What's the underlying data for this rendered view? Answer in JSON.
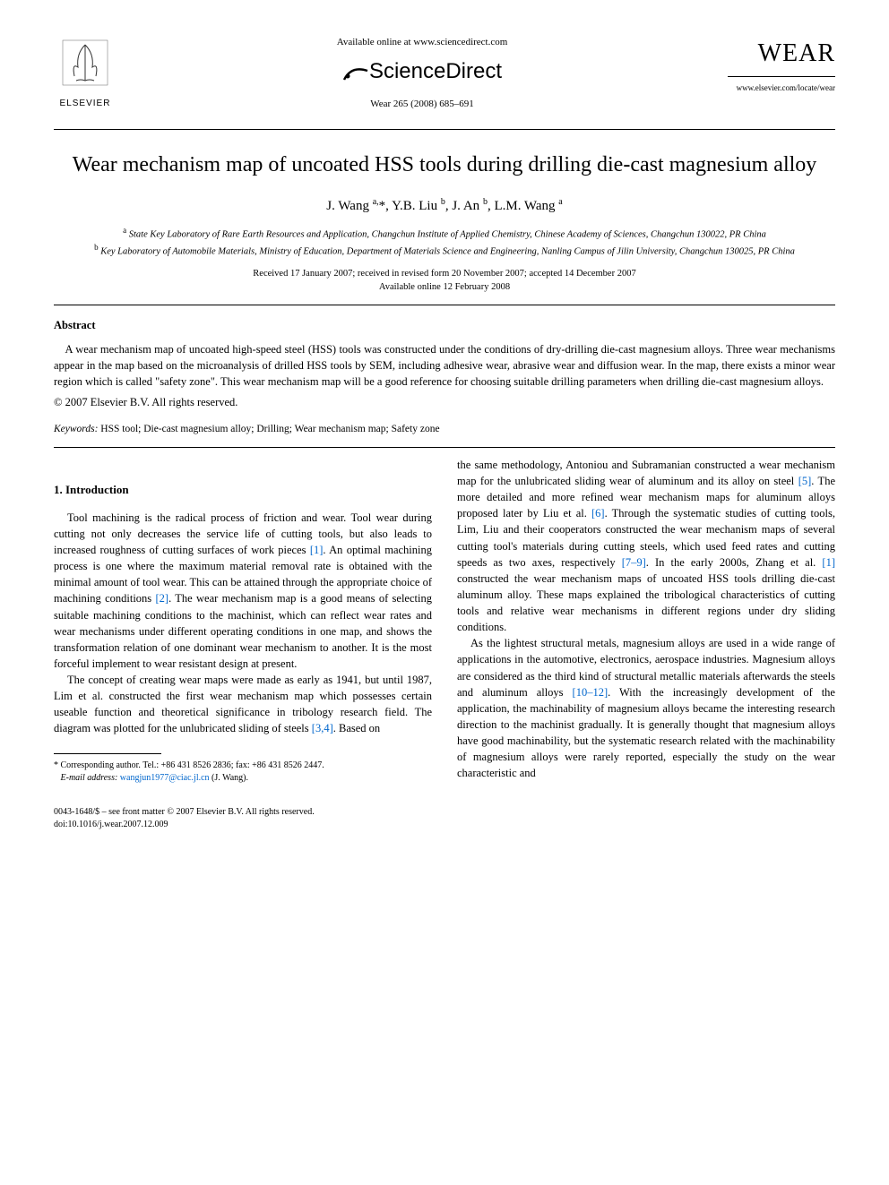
{
  "header": {
    "publisher_name": "ELSEVIER",
    "available_online": "Available online at www.sciencedirect.com",
    "sciencedirect": "ScienceDirect",
    "journal_ref": "Wear 265 (2008) 685–691",
    "journal_logo": "WEAR",
    "journal_url": "www.elsevier.com/locate/wear"
  },
  "title": "Wear mechanism map of uncoated HSS tools during drilling die-cast magnesium alloy",
  "authors_html": "J. Wang <sup>a,</sup>*, Y.B. Liu <sup>b</sup>, J. An <sup>b</sup>, L.M. Wang <sup>a</sup>",
  "affiliations": {
    "a": "State Key Laboratory of Rare Earth Resources and Application, Changchun Institute of Applied Chemistry, Chinese Academy of Sciences, Changchun 130022, PR China",
    "b": "Key Laboratory of Automobile Materials, Ministry of Education, Department of Materials Science and Engineering, Nanling Campus of Jilin University, Changchun 130025, PR China"
  },
  "dates": {
    "line1": "Received 17 January 2007; received in revised form 20 November 2007; accepted 14 December 2007",
    "line2": "Available online 12 February 2008"
  },
  "abstract": {
    "heading": "Abstract",
    "text": "A wear mechanism map of uncoated high-speed steel (HSS) tools was constructed under the conditions of dry-drilling die-cast magnesium alloys. Three wear mechanisms appear in the map based on the microanalysis of drilled HSS tools by SEM, including adhesive wear, abrasive wear and diffusion wear. In the map, there exists a minor wear region which is called \"safety zone\". This wear mechanism map will be a good reference for choosing suitable drilling parameters when drilling die-cast magnesium alloys.",
    "copyright": "© 2007 Elsevier B.V. All rights reserved."
  },
  "keywords": {
    "label": "Keywords:",
    "text": "HSS tool; Die-cast magnesium alloy; Drilling; Wear mechanism map; Safety zone"
  },
  "section1": {
    "heading": "1.  Introduction",
    "p1_a": "Tool machining is the radical process of friction and wear. Tool wear during cutting not only decreases the service life of cutting tools, but also leads to increased roughness of cutting surfaces of work pieces ",
    "ref1": "[1]",
    "p1_b": ". An optimal machining process is one where the maximum material removal rate is obtained with the minimal amount of tool wear. This can be attained through the appropriate choice of machining conditions ",
    "ref2": "[2]",
    "p1_c": ". The wear mechanism map is a good means of selecting suitable machining conditions to the machinist, which can reflect wear rates and wear mechanisms under different operating conditions in one map, and shows the transformation relation of one dominant wear mechanism to another. It is the most forceful implement to wear resistant design at present.",
    "p2_a": "The concept of creating wear maps were made as early as 1941, but until 1987, Lim et al. constructed the first wear mechanism map which possesses certain useable function and theoretical significance in tribology research field. The diagram was plotted for the unlubricated sliding of steels ",
    "ref34": "[3,4]",
    "p2_b": ". Based on",
    "p3_a": "the same methodology, Antoniou and Subramanian constructed a wear mechanism map for the unlubricated sliding wear of aluminum and its alloy on steel ",
    "ref5": "[5]",
    "p3_b": ". The more detailed and more refined wear mechanism maps for aluminum alloys proposed later by Liu et al. ",
    "ref6": "[6]",
    "p3_c": ". Through the systematic studies of cutting tools, Lim, Liu and their cooperators constructed the wear mechanism maps of several cutting tool's materials during cutting steels, which used feed rates and cutting speeds as two axes, respectively ",
    "ref79": "[7–9]",
    "p3_d": ". In the early 2000s, Zhang et al. ",
    "ref1b": "[1]",
    "p3_e": " constructed the wear mechanism maps of uncoated HSS tools drilling die-cast aluminum alloy. These maps explained the tribological characteristics of cutting tools and relative wear mechanisms in different regions under dry sliding conditions.",
    "p4_a": "As the lightest structural metals, magnesium alloys are used in a wide range of applications in the automotive, electronics, aerospace industries. Magnesium alloys are considered as the third kind of structural metallic materials afterwards the steels and aluminum alloys ",
    "ref1012": "[10–12]",
    "p4_b": ". With the increasingly development of the application, the machinability of magnesium alloys became the interesting research direction to the machinist gradually. It is generally thought that magnesium alloys have good machinability, but the systematic research related with the machinability of magnesium alloys were rarely reported, especially the study on the wear characteristic and"
  },
  "footnote": {
    "corresponding": "* Corresponding author. Tel.: +86 431 8526 2836; fax: +86 431 8526 2447.",
    "email_label": "E-mail address:",
    "email": "wangjun1977@ciac.jl.cn",
    "email_who": "(J. Wang)."
  },
  "footer": {
    "issn": "0043-1648/$ – see front matter © 2007 Elsevier B.V. All rights reserved.",
    "doi": "doi:10.1016/j.wear.2007.12.009"
  },
  "colors": {
    "link": "#0066cc",
    "text": "#000000",
    "background": "#ffffff"
  }
}
